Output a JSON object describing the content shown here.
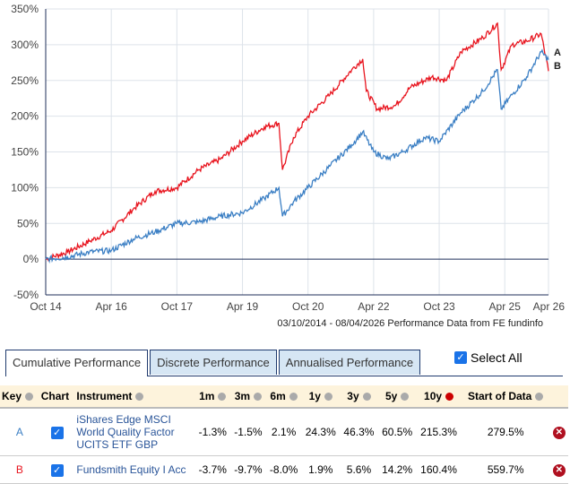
{
  "chart_data": {
    "type": "line",
    "ylim": [
      -50,
      350
    ],
    "y_ticks": [
      "350%",
      "300%",
      "250%",
      "200%",
      "150%",
      "100%",
      "50%",
      "0%",
      "-50%"
    ],
    "y_tick_values": [
      350,
      300,
      250,
      200,
      150,
      100,
      50,
      0,
      -50
    ],
    "x_ticks": [
      "Oct 14",
      "Apr 16",
      "Oct 17",
      "Apr 19",
      "Oct 20",
      "Apr 22",
      "Oct 23",
      "Apr 25",
      "Apr 26"
    ],
    "x_tick_months": [
      0,
      18,
      36,
      54,
      72,
      90,
      108,
      126,
      138
    ],
    "x_unit": "months since Oct 2014",
    "footnote": "03/10/2014 - 08/04/2026 Performance Data from FE fundinfo",
    "series": [
      {
        "name": "A",
        "color": "#3b7fc4",
        "points": [
          [
            0,
            0
          ],
          [
            6,
            3
          ],
          [
            12,
            10
          ],
          [
            18,
            12
          ],
          [
            24,
            28
          ],
          [
            30,
            38
          ],
          [
            36,
            50
          ],
          [
            42,
            52
          ],
          [
            48,
            60
          ],
          [
            54,
            65
          ],
          [
            60,
            85
          ],
          [
            64,
            100
          ],
          [
            65,
            60
          ],
          [
            68,
            80
          ],
          [
            72,
            100
          ],
          [
            78,
            130
          ],
          [
            84,
            160
          ],
          [
            87,
            178
          ],
          [
            90,
            150
          ],
          [
            94,
            140
          ],
          [
            98,
            150
          ],
          [
            104,
            170
          ],
          [
            108,
            165
          ],
          [
            114,
            205
          ],
          [
            120,
            235
          ],
          [
            124,
            265
          ],
          [
            125,
            210
          ],
          [
            128,
            230
          ],
          [
            132,
            255
          ],
          [
            136,
            290
          ],
          [
            138,
            279
          ]
        ]
      },
      {
        "name": "B",
        "color": "#e8141e",
        "points": [
          [
            0,
            0
          ],
          [
            6,
            10
          ],
          [
            12,
            25
          ],
          [
            18,
            40
          ],
          [
            24,
            70
          ],
          [
            30,
            95
          ],
          [
            36,
            100
          ],
          [
            42,
            125
          ],
          [
            48,
            140
          ],
          [
            54,
            165
          ],
          [
            60,
            185
          ],
          [
            64,
            190
          ],
          [
            65,
            125
          ],
          [
            68,
            170
          ],
          [
            72,
            200
          ],
          [
            78,
            230
          ],
          [
            84,
            265
          ],
          [
            87,
            280
          ],
          [
            88,
            235
          ],
          [
            91,
            210
          ],
          [
            96,
            215
          ],
          [
            100,
            240
          ],
          [
            106,
            255
          ],
          [
            110,
            250
          ],
          [
            114,
            290
          ],
          [
            120,
            310
          ],
          [
            124,
            330
          ],
          [
            125,
            265
          ],
          [
            128,
            300
          ],
          [
            132,
            305
          ],
          [
            136,
            315
          ],
          [
            138,
            263
          ]
        ]
      }
    ]
  },
  "tabs": [
    "Cumulative Performance",
    "Discrete Performance",
    "Annualised Performance"
  ],
  "select_all": "Select All",
  "table": {
    "headers": [
      "Key",
      "Chart",
      "Instrument",
      "1m",
      "3m",
      "6m",
      "1y",
      "3y",
      "5y",
      "10y",
      "Start of Data"
    ],
    "rows": [
      {
        "key": "A",
        "key_color": "#3b7fc4",
        "instrument": "iShares Edge MSCI World Quality Factor UCITS ETF GBP",
        "values": [
          "-1.3%",
          "-1.5%",
          "2.1%",
          "24.3%",
          "46.3%",
          "60.5%",
          "215.3%",
          "279.5%"
        ]
      },
      {
        "key": "B",
        "key_color": "#e8141e",
        "instrument": "Fundsmith Equity I Acc",
        "values": [
          "-3.7%",
          "-9.7%",
          "-8.0%",
          "1.9%",
          "5.6%",
          "14.2%",
          "160.4%",
          "559.7%"
        ]
      }
    ]
  }
}
